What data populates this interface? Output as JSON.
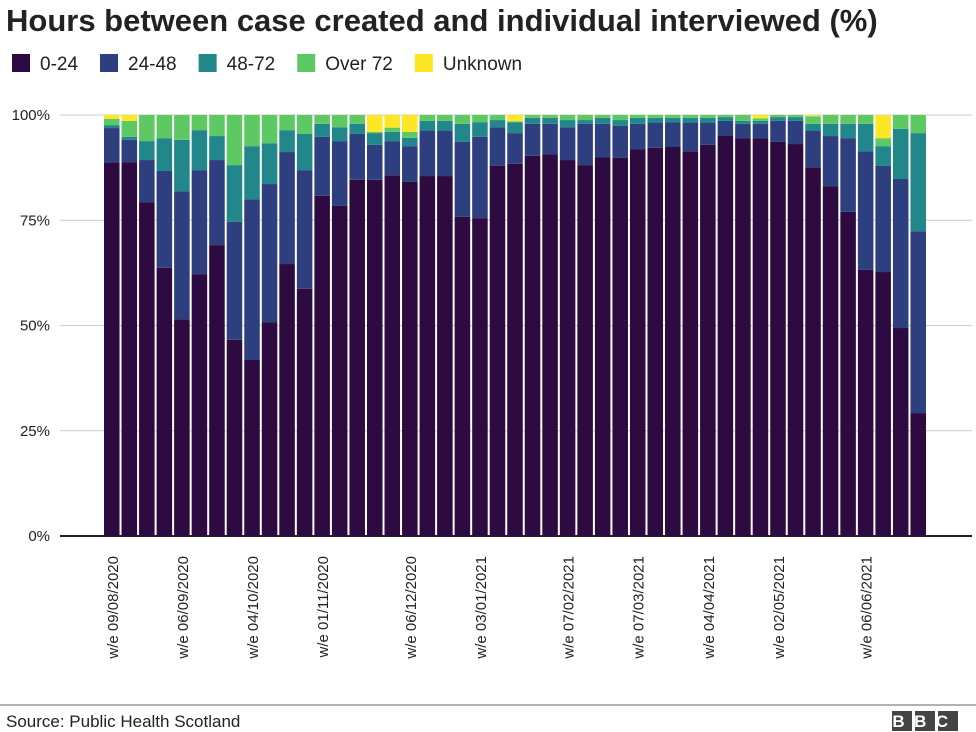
{
  "chart_data": {
    "type": "stacked-bar",
    "title": "Hours between case created and individual interviewed (%)",
    "source": "Source: Public Health Scotland",
    "logo": "BBC",
    "categories": [
      "w/e 09/08/2020",
      null,
      null,
      null,
      "w/e 06/09/2020",
      null,
      null,
      null,
      "w/e 04/10/2020",
      null,
      null,
      null,
      "w/e 01/11/2020",
      null,
      null,
      null,
      null,
      "w/e 06/12/2020",
      null,
      null,
      null,
      "w/e 03/01/2021",
      null,
      null,
      null,
      null,
      "w/e 07/02/2021",
      null,
      null,
      null,
      "w/e 07/03/2021",
      null,
      null,
      null,
      "w/e 04/04/2021",
      null,
      null,
      null,
      "w/e 02/05/2021",
      null,
      null,
      null,
      null,
      "w/e 06/06/2021",
      null,
      null,
      null
    ],
    "series": [
      {
        "name": "0-24",
        "color": "#2d0a3f",
        "values": [
          88.6,
          88.8,
          79.3,
          63.7,
          51.5,
          62.2,
          69.1,
          46.6,
          41.8,
          50.8,
          64.6,
          58.7,
          80.8,
          78.4,
          84.6,
          84.6,
          85.7,
          84.1,
          85.5,
          85.5,
          75.8,
          75.5,
          87.9,
          88.4,
          90.3,
          90.7,
          89.3,
          88.1,
          90.0,
          89.8,
          91.9,
          92.2,
          92.4,
          91.4,
          92.9,
          95.2,
          94.5,
          94.5,
          93.6,
          93.1,
          87.6,
          83.1,
          77.0,
          63.2,
          62.7,
          49.4,
          29.2
        ]
      },
      {
        "name": "24-48",
        "color": "#2e3f7f",
        "values": [
          8.3,
          5.3,
          10.0,
          23.0,
          30.4,
          24.7,
          20.2,
          28.0,
          38.2,
          32.8,
          26.6,
          28.2,
          14.0,
          15.4,
          10.9,
          8.3,
          8.1,
          8.5,
          10.7,
          10.7,
          17.8,
          19.3,
          9.2,
          7.3,
          7.6,
          7.2,
          7.8,
          9.8,
          7.9,
          7.6,
          6.0,
          5.9,
          5.9,
          6.7,
          5.2,
          3.4,
          3.4,
          3.4,
          5.0,
          5.5,
          8.6,
          11.9,
          17.5,
          28.2,
          25.2,
          35.4,
          43.2
        ]
      },
      {
        "name": "48-72",
        "color": "#22878a",
        "values": [
          0.7,
          0.7,
          4.5,
          7.8,
          12.2,
          9.5,
          5.7,
          13.5,
          12.6,
          9.7,
          5.2,
          8.6,
          3.1,
          3.3,
          2.4,
          2.8,
          2.2,
          2.0,
          2.4,
          2.4,
          4.3,
          3.5,
          1.7,
          2.6,
          1.4,
          1.4,
          1.7,
          0.9,
          1.4,
          1.4,
          1.4,
          1.2,
          1.0,
          1.2,
          1.2,
          0.9,
          0.7,
          0.7,
          0.9,
          0.9,
          1.7,
          2.9,
          3.4,
          6.5,
          4.7,
          11.9,
          23.3
        ]
      },
      {
        "name": "Over 72",
        "color": "#5ec962",
        "values": [
          1.5,
          3.8,
          6.2,
          5.5,
          5.9,
          3.6,
          5.0,
          11.9,
          7.4,
          6.7,
          3.6,
          4.5,
          2.1,
          2.9,
          2.1,
          0.3,
          1.0,
          1.4,
          1.4,
          1.4,
          2.1,
          1.7,
          1.2,
          0.2,
          0.7,
          0.7,
          1.2,
          1.2,
          0.7,
          1.2,
          0.7,
          0.7,
          0.7,
          0.7,
          0.7,
          0.5,
          1.4,
          0.6,
          0.5,
          0.5,
          1.8,
          2.1,
          2.1,
          2.1,
          1.9,
          3.3,
          4.3
        ]
      },
      {
        "name": "Unknown",
        "color": "#fde725",
        "values": [
          0.9,
          1.4,
          0,
          0,
          0,
          0,
          0,
          0,
          0,
          0,
          0,
          0,
          0,
          0,
          0,
          4.0,
          3.0,
          4.0,
          0,
          0,
          0,
          0,
          0,
          1.5,
          0,
          0,
          0,
          0,
          0,
          0,
          0,
          0,
          0,
          0,
          0,
          0,
          0,
          0.8,
          0,
          0,
          0.3,
          0,
          0,
          0,
          5.5,
          0,
          0
        ]
      }
    ],
    "ylim": [
      0,
      100
    ],
    "yticks": [
      {
        "value": 0,
        "label": "0%"
      },
      {
        "value": 25,
        "label": "25%"
      },
      {
        "value": 50,
        "label": "50%"
      },
      {
        "value": 75,
        "label": "75%"
      },
      {
        "value": 100,
        "label": "100%"
      }
    ],
    "grid": true,
    "legend": "top-left"
  }
}
